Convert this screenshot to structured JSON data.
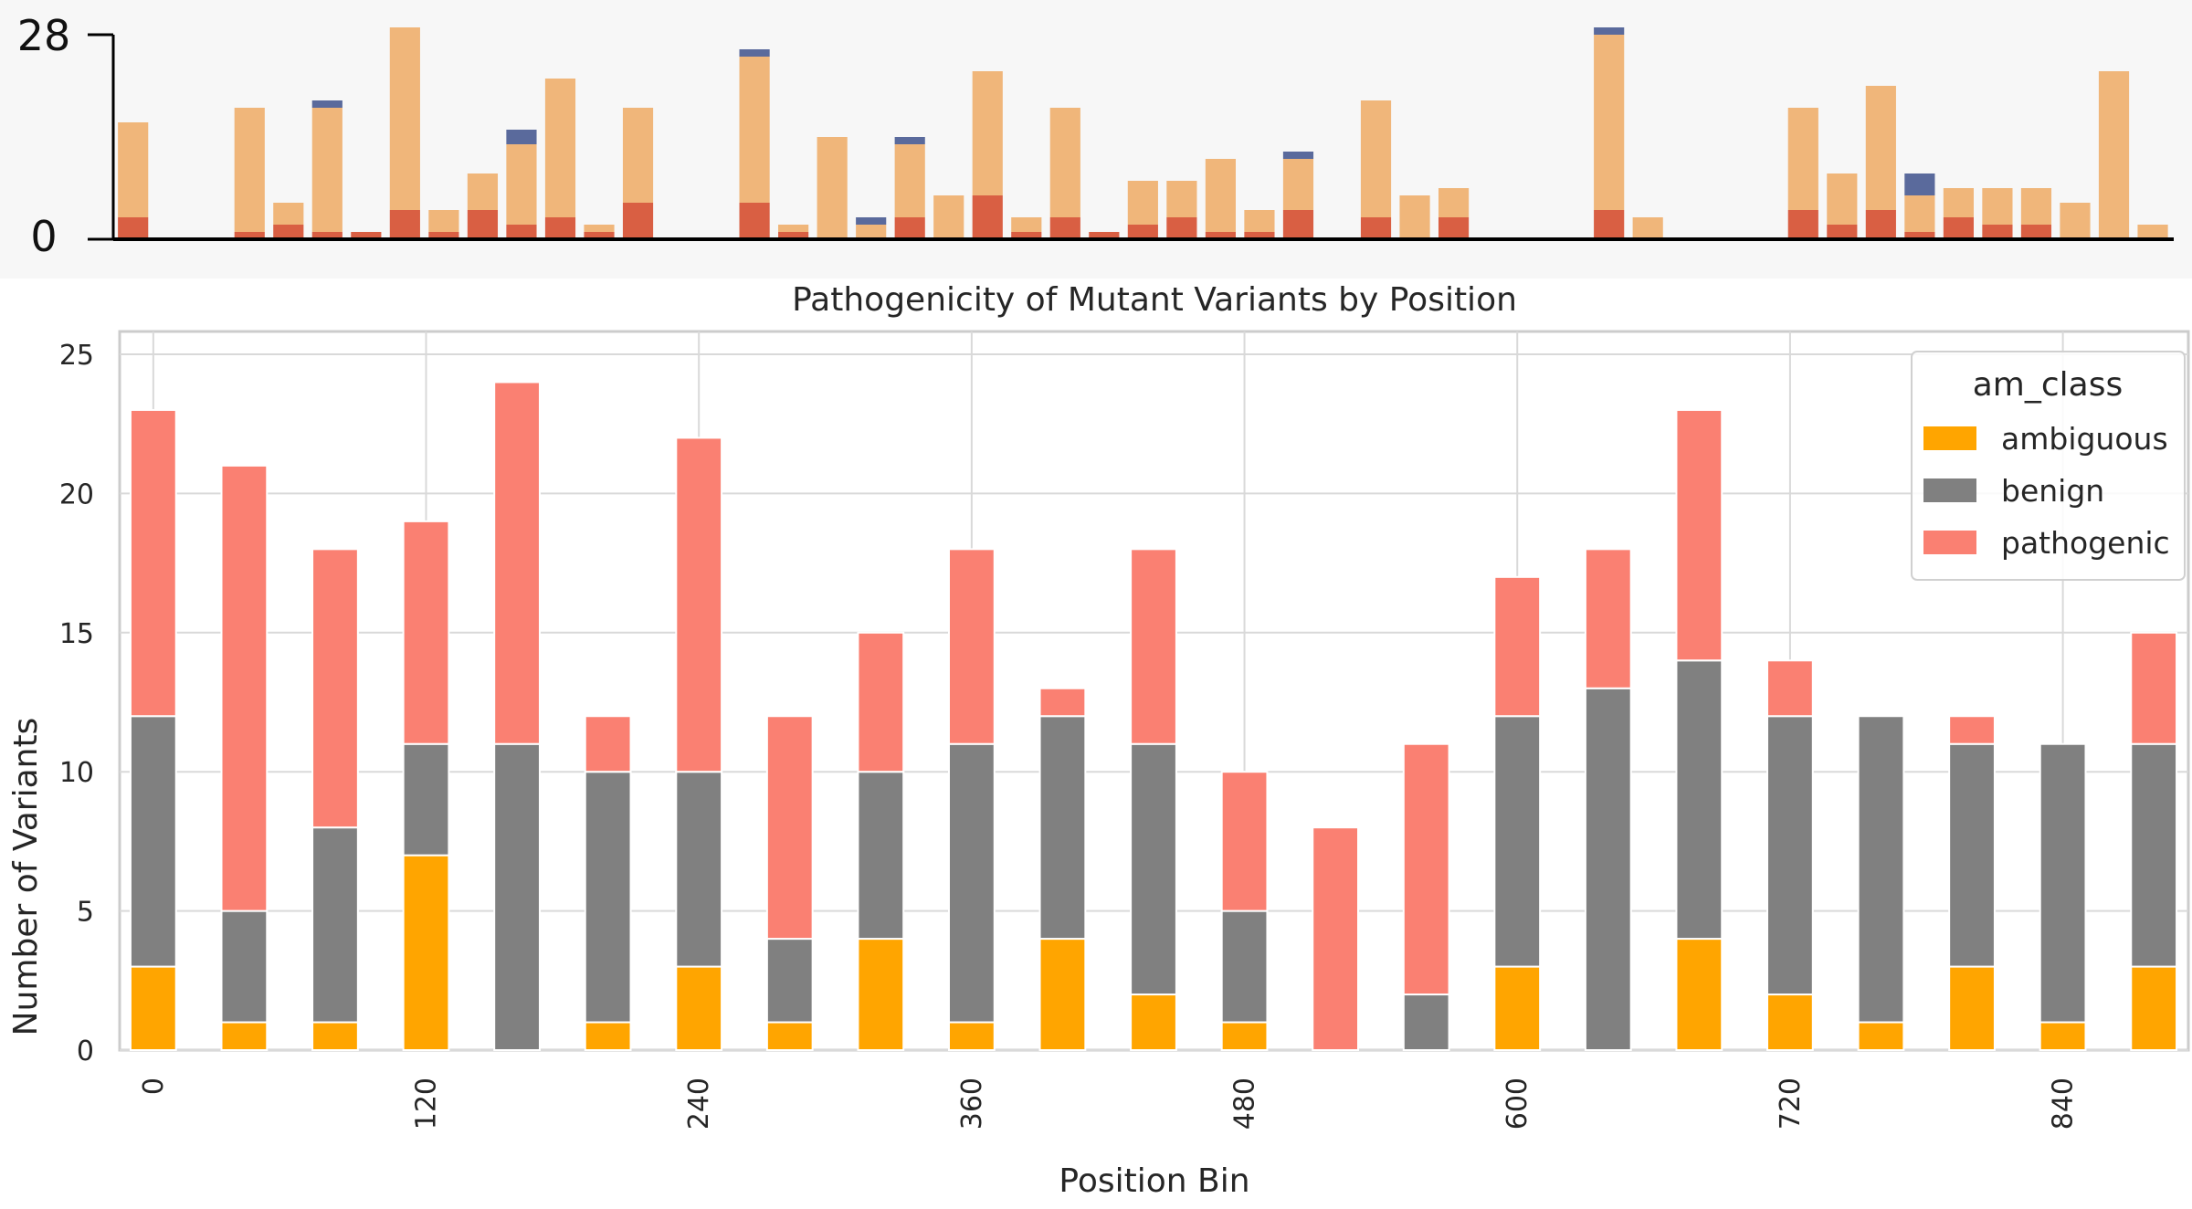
{
  "overview": {
    "y_max_label": "28",
    "y_min_label": "0",
    "y_max": 28,
    "colors": {
      "ambiguous": "#f0b67a",
      "benign": "#5a6a9c",
      "pathogenic": "#d95f43"
    },
    "bars": [
      {
        "ambiguous": 13,
        "benign": 0,
        "pathogenic": 3
      },
      null,
      null,
      {
        "ambiguous": 17,
        "benign": 0,
        "pathogenic": 1
      },
      {
        "ambiguous": 3,
        "benign": 0,
        "pathogenic": 2
      },
      {
        "ambiguous": 17,
        "benign": 1,
        "pathogenic": 1
      },
      {
        "ambiguous": 0,
        "benign": 0,
        "pathogenic": 1
      },
      {
        "ambiguous": 25,
        "benign": 0,
        "pathogenic": 4
      },
      {
        "ambiguous": 3,
        "benign": 0,
        "pathogenic": 1
      },
      {
        "ambiguous": 5,
        "benign": 0,
        "pathogenic": 4
      },
      {
        "ambiguous": 11,
        "benign": 2,
        "pathogenic": 2
      },
      {
        "ambiguous": 19,
        "benign": 0,
        "pathogenic": 3
      },
      {
        "ambiguous": 1,
        "benign": 0,
        "pathogenic": 1
      },
      {
        "ambiguous": 13,
        "benign": 0,
        "pathogenic": 5
      },
      null,
      null,
      {
        "ambiguous": 20,
        "benign": 1,
        "pathogenic": 5
      },
      {
        "ambiguous": 1,
        "benign": 0,
        "pathogenic": 1
      },
      {
        "ambiguous": 14,
        "benign": 0,
        "pathogenic": 0
      },
      {
        "ambiguous": 2,
        "benign": 1,
        "pathogenic": 0
      },
      {
        "ambiguous": 10,
        "benign": 1,
        "pathogenic": 3
      },
      {
        "ambiguous": 6,
        "benign": 0,
        "pathogenic": 0
      },
      {
        "ambiguous": 17,
        "benign": 0,
        "pathogenic": 6
      },
      {
        "ambiguous": 2,
        "benign": 0,
        "pathogenic": 1
      },
      {
        "ambiguous": 15,
        "benign": 0,
        "pathogenic": 3
      },
      {
        "ambiguous": 0,
        "benign": 0,
        "pathogenic": 1
      },
      {
        "ambiguous": 6,
        "benign": 0,
        "pathogenic": 2
      },
      {
        "ambiguous": 5,
        "benign": 0,
        "pathogenic": 3
      },
      {
        "ambiguous": 10,
        "benign": 0,
        "pathogenic": 1
      },
      {
        "ambiguous": 3,
        "benign": 0,
        "pathogenic": 1
      },
      {
        "ambiguous": 7,
        "benign": 1,
        "pathogenic": 4
      },
      null,
      {
        "ambiguous": 16,
        "benign": 0,
        "pathogenic": 3
      },
      {
        "ambiguous": 6,
        "benign": 0,
        "pathogenic": 0
      },
      {
        "ambiguous": 4,
        "benign": 0,
        "pathogenic": 3
      },
      null,
      null,
      null,
      {
        "ambiguous": 24,
        "benign": 1,
        "pathogenic": 4
      },
      {
        "ambiguous": 3,
        "benign": 0,
        "pathogenic": 0
      },
      null,
      null,
      null,
      {
        "ambiguous": 14,
        "benign": 0,
        "pathogenic": 4
      },
      {
        "ambiguous": 7,
        "benign": 0,
        "pathogenic": 2
      },
      {
        "ambiguous": 17,
        "benign": 0,
        "pathogenic": 4
      },
      {
        "ambiguous": 5,
        "benign": 3,
        "pathogenic": 1
      },
      {
        "ambiguous": 4,
        "benign": 0,
        "pathogenic": 3
      },
      {
        "ambiguous": 5,
        "benign": 0,
        "pathogenic": 2
      },
      {
        "ambiguous": 5,
        "benign": 0,
        "pathogenic": 2
      },
      {
        "ambiguous": 5,
        "benign": 0,
        "pathogenic": 0
      },
      {
        "ambiguous": 23,
        "benign": 0,
        "pathogenic": 0
      },
      {
        "ambiguous": 2,
        "benign": 0,
        "pathogenic": 0
      }
    ]
  },
  "chart_data": {
    "type": "bar",
    "stacked": true,
    "title": "Pathogenicity of Mutant Variants by Position",
    "xlabel": "Position Bin",
    "ylabel": "Number of Variants",
    "ylim": [
      0,
      25
    ],
    "yticks": [
      0,
      5,
      10,
      15,
      20,
      25
    ],
    "x": [
      0,
      40,
      80,
      120,
      160,
      200,
      240,
      280,
      320,
      360,
      400,
      440,
      480,
      520,
      560,
      600,
      640,
      680,
      720,
      760,
      800,
      840,
      880
    ],
    "xticks": [
      0,
      120,
      240,
      360,
      480,
      600,
      720,
      840
    ],
    "grid": true,
    "legend": {
      "title": "am_class",
      "placement": "top-right"
    },
    "series": [
      {
        "name": "ambiguous",
        "color": "#ffa500",
        "values": [
          3,
          1,
          1,
          7,
          0,
          1,
          3,
          1,
          4,
          1,
          4,
          2,
          1,
          0,
          0,
          3,
          0,
          4,
          2,
          1,
          3,
          1,
          3
        ]
      },
      {
        "name": "benign",
        "color": "#808080",
        "values": [
          9,
          4,
          7,
          4,
          11,
          9,
          7,
          3,
          6,
          10,
          8,
          9,
          4,
          0,
          2,
          9,
          13,
          10,
          10,
          11,
          8,
          10,
          8
        ]
      },
      {
        "name": "pathogenic",
        "color": "#fa8072",
        "values": [
          11,
          16,
          10,
          8,
          13,
          2,
          12,
          8,
          5,
          7,
          1,
          7,
          5,
          8,
          9,
          5,
          5,
          9,
          2,
          0,
          1,
          0,
          4
        ]
      }
    ]
  }
}
